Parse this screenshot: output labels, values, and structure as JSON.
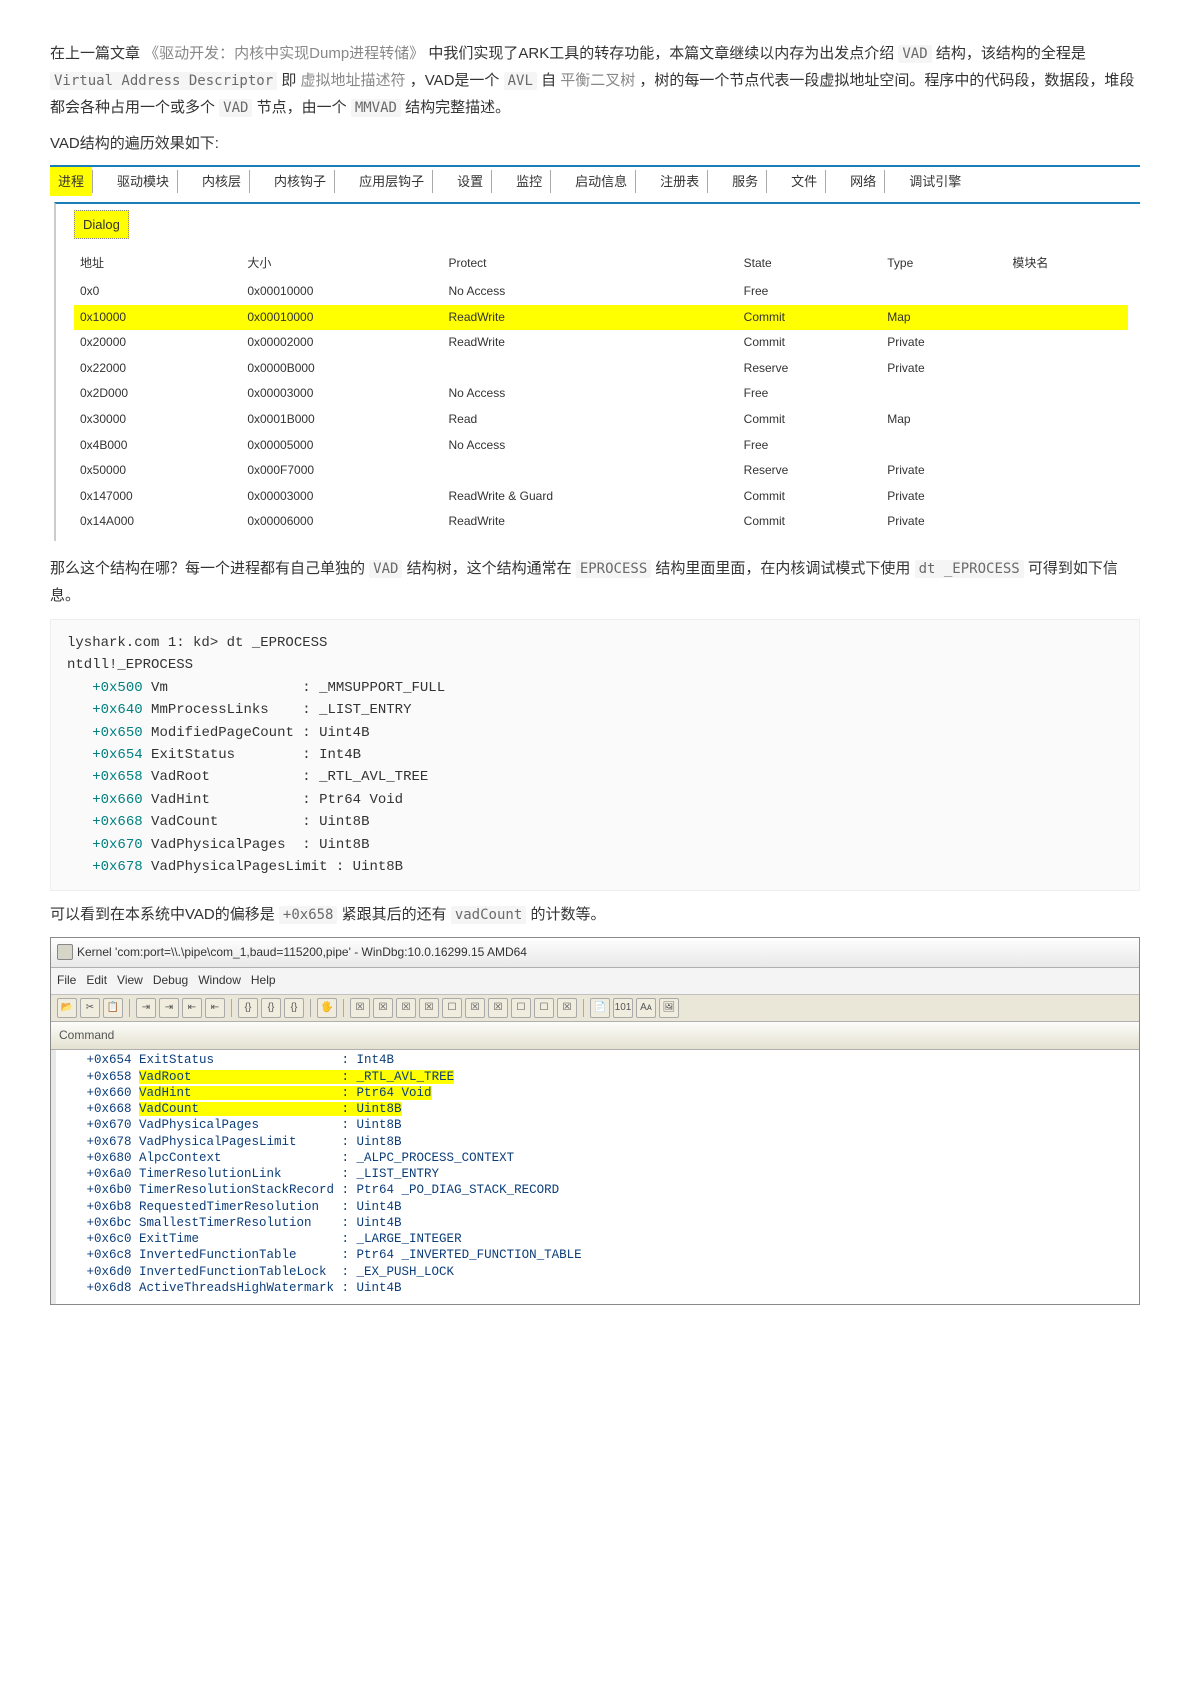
{
  "intro": {
    "p1_prefix": "在上一篇文章 ",
    "p1_link": "《驱动开发：内核中实现Dump进程转储》",
    "p1_mid": " 中我们实现了ARK工具的转存功能，本篇文章继续以内存为出发点介绍 ",
    "code_vad": "VAD",
    "p1_after_vad": " 结构，该结构的全程是 ",
    "code_full": "Virtual Address Descriptor",
    "p1_after_full": " 即 ",
    "gray_text1": "虚拟地址描述符",
    "p1_tail1": "，VAD是一个 ",
    "code_avl": "AVL",
    "p1_after_avl": " 自 ",
    "gray_text2": "平衡二叉树",
    "p1_tail2": "，树的每一个节点代表一段虚拟地址空间。程序中的代码段，数据段，堆段都会各种占用一个或多个 ",
    "code_vad2": "VAD",
    "p1_after_vad2": " 节点，由一个 ",
    "code_mmvad": "MMVAD",
    "p1_end": " 结构完整描述。",
    "p2": "VAD结构的遍历效果如下:"
  },
  "tabs": [
    "进程",
    "驱动模块",
    "内核层",
    "内核钩子",
    "应用层钩子",
    "设置",
    "监控",
    "启动信息",
    "注册表",
    "服务",
    "文件",
    "网络",
    "调试引擎"
  ],
  "dialog": {
    "title": "Dialog",
    "headers": [
      "地址",
      "大小",
      "Protect",
      "State",
      "Type",
      "模块名"
    ],
    "rows": [
      {
        "addr": "0x0",
        "size": "0x00010000",
        "protect": "No Access",
        "state": "Free",
        "type": "",
        "hl": false
      },
      {
        "addr": "0x10000",
        "size": "0x00010000",
        "protect": "ReadWrite",
        "state": "Commit",
        "type": "Map",
        "hl": true
      },
      {
        "addr": "0x20000",
        "size": "0x00002000",
        "protect": "ReadWrite",
        "state": "Commit",
        "type": "Private",
        "hl": false
      },
      {
        "addr": "0x22000",
        "size": "0x0000B000",
        "protect": "",
        "state": "Reserve",
        "type": "Private",
        "hl": false
      },
      {
        "addr": "0x2D000",
        "size": "0x00003000",
        "protect": "No Access",
        "state": "Free",
        "type": "",
        "hl": false
      },
      {
        "addr": "0x30000",
        "size": "0x0001B000",
        "protect": "Read",
        "state": "Commit",
        "type": "Map",
        "hl": false
      },
      {
        "addr": "0x4B000",
        "size": "0x00005000",
        "protect": "No Access",
        "state": "Free",
        "type": "",
        "hl": false
      },
      {
        "addr": "0x50000",
        "size": "0x000F7000",
        "protect": "",
        "state": "Reserve",
        "type": "Private",
        "hl": false
      },
      {
        "addr": "0x147000",
        "size": "0x00003000",
        "protect": "ReadWrite & Guard",
        "state": "Commit",
        "type": "Private",
        "hl": false
      },
      {
        "addr": "0x14A000",
        "size": "0x00006000",
        "protect": "ReadWrite",
        "state": "Commit",
        "type": "Private",
        "hl": false
      }
    ]
  },
  "mid": {
    "p1a": "那么这个结构在哪？每一个进程都有自己单独的 ",
    "code_vad": "VAD",
    "p1b": " 结构树，这个结构通常在 ",
    "code_eproc": "EPROCESS",
    "p1c": " 结构里面里面，在内核调试模式下使用 ",
    "code_dt": "dt _EPROCESS",
    "p1d": " 可得到如下信息。"
  },
  "codeblock": {
    "line1": "lyshark.com 1: kd> dt _EPROCESS",
    "line2": "ntdll!_EPROCESS",
    "entries": [
      {
        "off": "+0x500",
        "name": "Vm",
        "type": ": _MMSUPPORT_FULL"
      },
      {
        "off": "+0x640",
        "name": "MmProcessLinks",
        "type": ": _LIST_ENTRY"
      },
      {
        "off": "+0x650",
        "name": "ModifiedPageCount",
        "type": ": Uint4B"
      },
      {
        "off": "+0x654",
        "name": "ExitStatus",
        "type": ": Int4B"
      },
      {
        "off": "+0x658",
        "name": "VadRoot",
        "type": ": _RTL_AVL_TREE"
      },
      {
        "off": "+0x660",
        "name": "VadHint",
        "type": ": Ptr64 Void"
      },
      {
        "off": "+0x668",
        "name": "VadCount",
        "type": ": Uint8B"
      },
      {
        "off": "+0x670",
        "name": "VadPhysicalPages",
        "type": ": Uint8B"
      },
      {
        "off": "+0x678",
        "name": "VadPhysicalPagesLimit",
        "type": ": Uint8B"
      }
    ]
  },
  "after_code": {
    "a": "可以看到在本系统中VAD的偏移是 ",
    "code1": "+0x658",
    "b": " 紧跟其后的还有 ",
    "code2": "vadCount",
    "c": " 的计数等。"
  },
  "windbg": {
    "title": "Kernel 'com:port=\\\\.\\pipe\\com_1,baud=115200,pipe' - WinDbg:10.0.16299.15 AMD64",
    "menu": [
      "File",
      "Edit",
      "View",
      "Debug",
      "Window",
      "Help"
    ],
    "command": "Command",
    "lines": [
      {
        "off": "+0x654",
        "name": "ExitStatus",
        "type": ": Int4B",
        "hl": false
      },
      {
        "off": "+0x658",
        "name": "VadRoot",
        "type": ": _RTL_AVL_TREE",
        "hl": true
      },
      {
        "off": "+0x660",
        "name": "VadHint",
        "type": ": Ptr64 Void",
        "hl": true
      },
      {
        "off": "+0x668",
        "name": "VadCount",
        "type": ": Uint8B",
        "hl": true
      },
      {
        "off": "+0x670",
        "name": "VadPhysicalPages",
        "type": ": Uint8B",
        "hl": false
      },
      {
        "off": "+0x678",
        "name": "VadPhysicalPagesLimit",
        "type": ": Uint8B",
        "hl": false
      },
      {
        "off": "+0x680",
        "name": "AlpcContext",
        "type": ": _ALPC_PROCESS_CONTEXT",
        "hl": false
      },
      {
        "off": "+0x6a0",
        "name": "TimerResolutionLink",
        "type": ": _LIST_ENTRY",
        "hl": false
      },
      {
        "off": "+0x6b0",
        "name": "TimerResolutionStackRecord",
        "type": ": Ptr64 _PO_DIAG_STACK_RECORD",
        "hl": false
      },
      {
        "off": "+0x6b8",
        "name": "RequestedTimerResolution",
        "type": ": Uint4B",
        "hl": false
      },
      {
        "off": "+0x6bc",
        "name": "SmallestTimerResolution",
        "type": ": Uint4B",
        "hl": false
      },
      {
        "off": "+0x6c0",
        "name": "ExitTime",
        "type": ": _LARGE_INTEGER",
        "hl": false
      },
      {
        "off": "+0x6c8",
        "name": "InvertedFunctionTable",
        "type": ": Ptr64 _INVERTED_FUNCTION_TABLE",
        "hl": false
      },
      {
        "off": "+0x6d0",
        "name": "InvertedFunctionTableLock",
        "type": ": _EX_PUSH_LOCK",
        "hl": false
      },
      {
        "off": "+0x6d8",
        "name": "ActiveThreadsHighWatermark",
        "type": ": Uint4B",
        "hl": false
      }
    ]
  }
}
